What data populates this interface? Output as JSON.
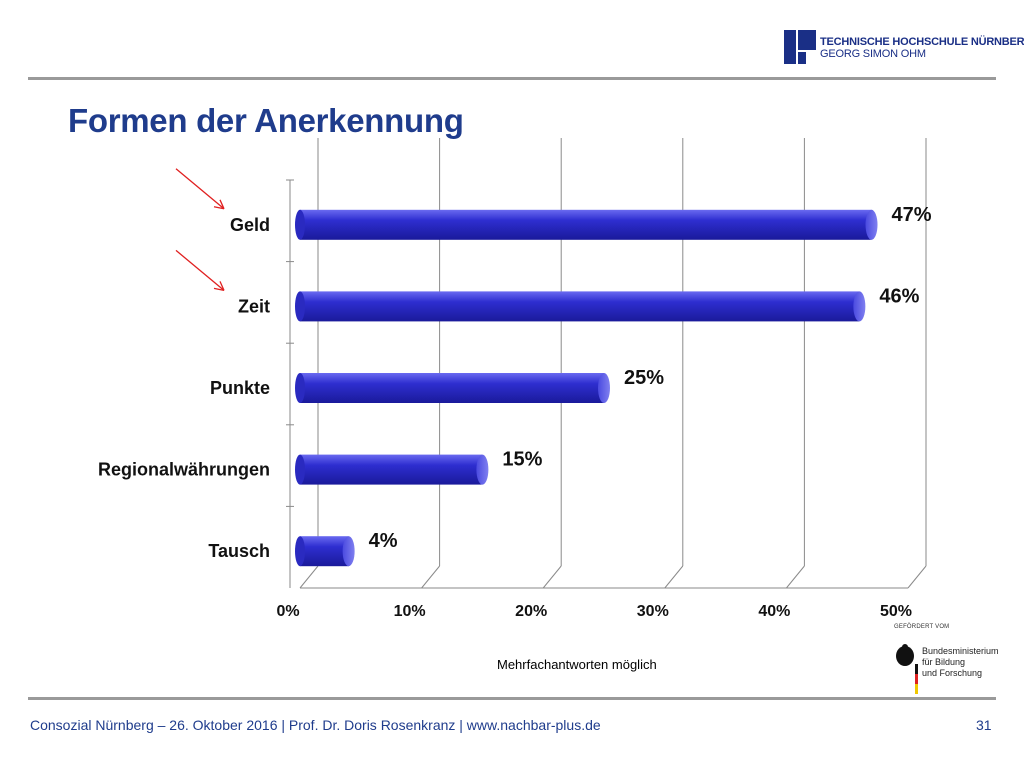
{
  "header": {
    "logo_line1": "TECHNISCHE HOCHSCHULE NÜRNBERG",
    "logo_line2": "GEORG SIMON OHM"
  },
  "slide": {
    "title": "Formen der Anerkennung",
    "note": "Mehrfachantworten möglich"
  },
  "sponsor": {
    "heading": "GEFÖRDERT VOM",
    "lines": [
      "Bundesministerium",
      "für Bildung",
      "und Forschung"
    ]
  },
  "footer": {
    "text": "Consozial Nürnberg – 26. Oktober 2016 | Prof. Dr. Doris Rosenkranz  | www.nachbar-plus.de",
    "page": "31"
  },
  "colors": {
    "title": "#1f3c8c",
    "bar": "#2e2ed0",
    "arrow": "#e02020",
    "rule": "#9a9a9a"
  },
  "chart_data": {
    "type": "bar",
    "orientation": "horizontal",
    "categories": [
      "Geld",
      "Zeit",
      "Punkte",
      "Regionalwährungen",
      "Tausch"
    ],
    "values": [
      47,
      46,
      25,
      15,
      4
    ],
    "value_labels": [
      "47%",
      "46%",
      "25%",
      "15%",
      "4%"
    ],
    "xticks": [
      "0%",
      "10%",
      "20%",
      "30%",
      "40%",
      "50%"
    ],
    "xlim": [
      0,
      50
    ],
    "grid": true,
    "highlighted_categories": [
      "Geld",
      "Zeit"
    ]
  }
}
